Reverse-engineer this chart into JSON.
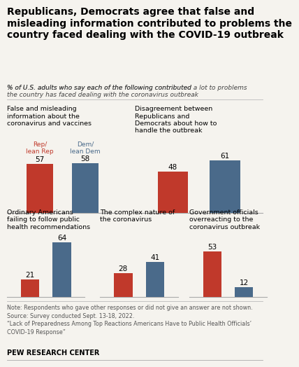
{
  "title": "Republicans, Democrats agree that false and\nmisleading information contributed to problems the\ncountry faced dealing with the COVID-19 outbreak",
  "subtitle_part1": "% of U.S. adults who say each of the following contributed ",
  "subtitle_bold": "a lot",
  "subtitle_part2": " to problems\nthe country has faced dealing with the coronavirus outbreak",
  "rep_color": "#c0392b",
  "dem_color": "#4a6a8a",
  "rep_label": "Rep/\nlean Rep",
  "dem_label": "Dem/\nlean Dem",
  "groups": [
    {
      "label": "False and misleading\ninformation about the\ncoronavirus and vaccines",
      "rep": 57,
      "dem": 58,
      "row": 0,
      "col": 0
    },
    {
      "label": "Disagreement between\nRepublicans and\nDemocrats about how to\nhandle the outbreak",
      "rep": 48,
      "dem": 61,
      "row": 0,
      "col": 1
    },
    {
      "label": "Ordinary Americans\nfailing to follow public\nhealth recommendations",
      "rep": 21,
      "dem": 64,
      "row": 1,
      "col": 0
    },
    {
      "label": "The complex nature of\nthe coronavirus",
      "rep": 28,
      "dem": 41,
      "row": 1,
      "col": 1
    },
    {
      "label": "Government officials\noverreacting to the\ncoronavirus outbreak",
      "rep": 53,
      "dem": 12,
      "row": 1,
      "col": 2
    }
  ],
  "note_line1": "Note: Respondents who gave other responses or did not give an answer are not shown.",
  "note_line2": "Source: Survey conducted Sept. 13-18, 2022.",
  "note_line3": "“Lack of Preparedness Among Top Reactions Americans Have to Public Health Officials’",
  "note_line4": "COVID-19 Response”",
  "source_bold": "PEW RESEARCH CENTER",
  "background_color": "#f5f3ee",
  "bar_width": 0.32,
  "ylim": [
    0,
    75
  ]
}
